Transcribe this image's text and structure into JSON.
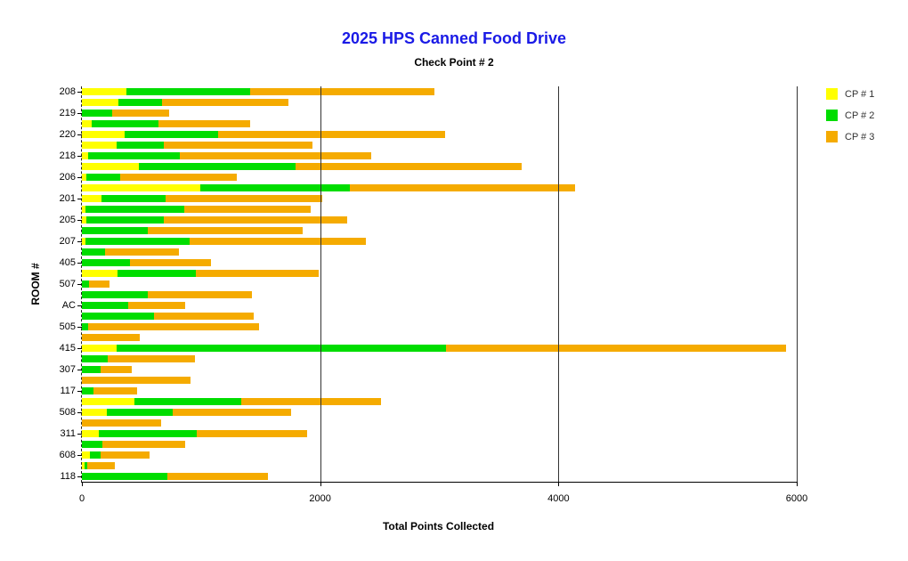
{
  "page": {
    "background": "#FFFFFF"
  },
  "chart_data": {
    "type": "bar",
    "orientation": "horizontal",
    "stacked": true,
    "title": "2025 HPS Canned Food Drive",
    "title_color": "#1A1AE6",
    "subtitle": "Check Point # 2",
    "xlabel": "Total Points Collected",
    "ylabel": "ROOM #",
    "xlim": [
      0,
      6000
    ],
    "xticks": [
      "0",
      "2000",
      "4000",
      "6000"
    ],
    "grid": "vertical gridlines at 2000, 4000, 6000 drawn over bars; dashed y-axis",
    "legend_position": "top-right",
    "series": [
      {
        "name": "CP # 1",
        "color": "#FFFF00"
      },
      {
        "name": "CP # 2",
        "color": "#00DD00"
      },
      {
        "name": "CP # 3",
        "color": "#F5AB00"
      }
    ],
    "rows": [
      {
        "label": "208",
        "values": [
          370,
          1040,
          1550
        ]
      },
      {
        "label": "",
        "values": [
          310,
          360,
          1065
        ]
      },
      {
        "label": "219",
        "values": [
          0,
          255,
          475
        ]
      },
      {
        "label": "",
        "values": [
          80,
          565,
          770
        ]
      },
      {
        "label": "220",
        "values": [
          360,
          785,
          1900
        ]
      },
      {
        "label": "",
        "values": [
          295,
          395,
          1245
        ]
      },
      {
        "label": "218",
        "values": [
          50,
          775,
          1600
        ]
      },
      {
        "label": "",
        "values": [
          475,
          1315,
          1900
        ]
      },
      {
        "label": "206",
        "values": [
          35,
          285,
          980
        ]
      },
      {
        "label": "",
        "values": [
          995,
          1255,
          1890
        ]
      },
      {
        "label": "201",
        "values": [
          165,
          535,
          1315
        ]
      },
      {
        "label": "",
        "values": [
          30,
          830,
          1060
        ]
      },
      {
        "label": "205",
        "values": [
          35,
          655,
          1540
        ]
      },
      {
        "label": "",
        "values": [
          0,
          555,
          1295
        ]
      },
      {
        "label": "207",
        "values": [
          30,
          875,
          1480
        ]
      },
      {
        "label": "",
        "values": [
          0,
          195,
          620
        ]
      },
      {
        "label": "405",
        "values": [
          0,
          400,
          680
        ]
      },
      {
        "label": "",
        "values": [
          300,
          655,
          1030
        ]
      },
      {
        "label": "507",
        "values": [
          0,
          60,
          170
        ]
      },
      {
        "label": "",
        "values": [
          0,
          555,
          870
        ]
      },
      {
        "label": "AC",
        "values": [
          0,
          385,
          485
        ]
      },
      {
        "label": "",
        "values": [
          0,
          605,
          840
        ]
      },
      {
        "label": "505",
        "values": [
          0,
          55,
          1435
        ]
      },
      {
        "label": "",
        "values": [
          0,
          0,
          485
        ]
      },
      {
        "label": "415",
        "values": [
          295,
          2760,
          2855
        ]
      },
      {
        "label": "",
        "values": [
          0,
          215,
          735
        ]
      },
      {
        "label": "307",
        "values": [
          0,
          160,
          260
        ]
      },
      {
        "label": "",
        "values": [
          0,
          0,
          910
        ]
      },
      {
        "label": "117",
        "values": [
          0,
          100,
          360
        ]
      },
      {
        "label": "",
        "values": [
          440,
          895,
          1175
        ]
      },
      {
        "label": "508",
        "values": [
          210,
          550,
          995
        ]
      },
      {
        "label": "",
        "values": [
          0,
          0,
          665
        ]
      },
      {
        "label": "311",
        "values": [
          140,
          825,
          925
        ]
      },
      {
        "label": "",
        "values": [
          0,
          175,
          690
        ]
      },
      {
        "label": "608",
        "values": [
          70,
          85,
          410
        ]
      },
      {
        "label": "",
        "values": [
          20,
          25,
          235
        ]
      },
      {
        "label": "118",
        "values": [
          0,
          720,
          845
        ]
      }
    ]
  }
}
